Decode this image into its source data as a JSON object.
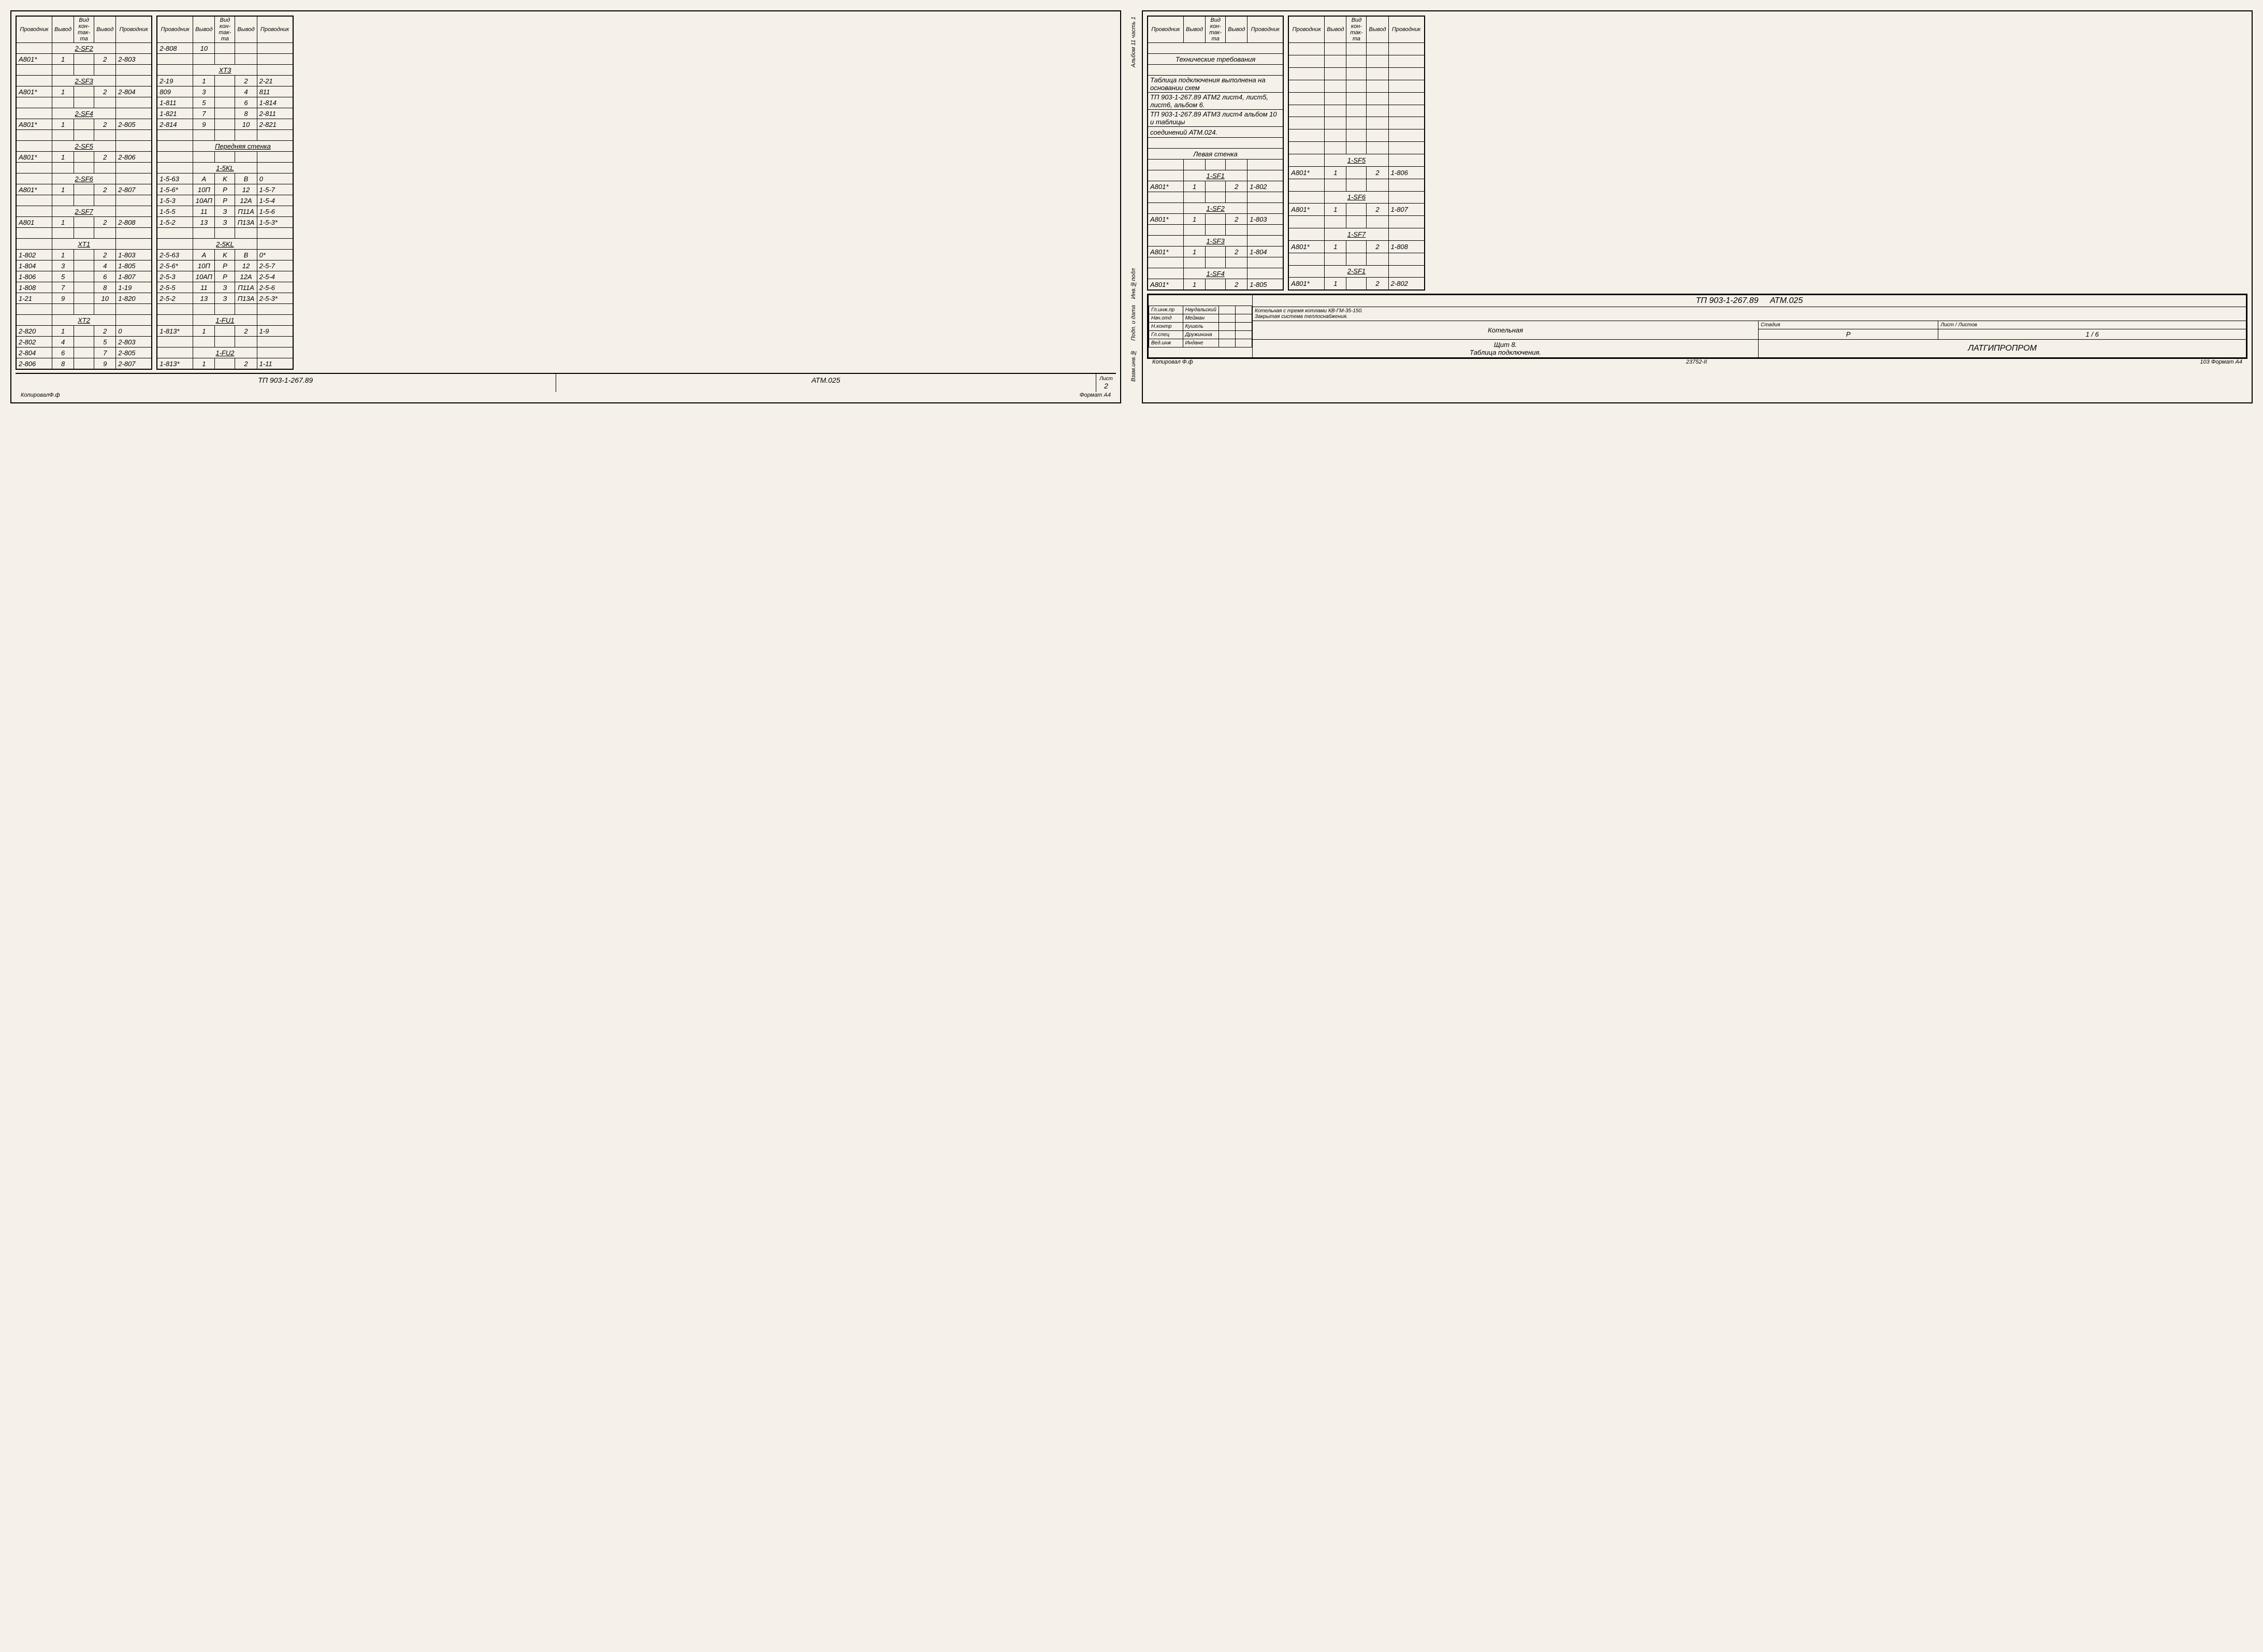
{
  "headers": {
    "t1": "Проводник",
    "t2": "Вывод",
    "t3": "Вид кон-так-та",
    "t4": "Вывод",
    "t5": "Проводник"
  },
  "left": {
    "tableA": {
      "rows": [
        {
          "section": "2-SF2"
        },
        {
          "c1": "A801*",
          "c2": "1",
          "c3": "",
          "c4": "2",
          "c5": "2-803"
        },
        {
          "blank": true
        },
        {
          "section": "2-SF3"
        },
        {
          "c1": "A801*",
          "c2": "1",
          "c3": "",
          "c4": "2",
          "c5": "2-804"
        },
        {
          "blank": true
        },
        {
          "section": "2-SF4"
        },
        {
          "c1": "A801*",
          "c2": "1",
          "c3": "",
          "c4": "2",
          "c5": "2-805"
        },
        {
          "blank": true
        },
        {
          "section": "2-SF5"
        },
        {
          "c1": "A801*",
          "c2": "1",
          "c3": "",
          "c4": "2",
          "c5": "2-806"
        },
        {
          "blank": true
        },
        {
          "section": "2-SF6"
        },
        {
          "c1": "A801*",
          "c2": "1",
          "c3": "",
          "c4": "2",
          "c5": "2-807"
        },
        {
          "blank": true
        },
        {
          "section": "2-SF7"
        },
        {
          "c1": "A801",
          "c2": "1",
          "c3": "",
          "c4": "2",
          "c5": "2-808"
        },
        {
          "blank": true
        },
        {
          "section": "XT1"
        },
        {
          "c1": "1-802",
          "c2": "1",
          "c3": "",
          "c4": "2",
          "c5": "1-803"
        },
        {
          "c1": "1-804",
          "c2": "3",
          "c3": "",
          "c4": "4",
          "c5": "1-805"
        },
        {
          "c1": "1-806",
          "c2": "5",
          "c3": "",
          "c4": "6",
          "c5": "1-807"
        },
        {
          "c1": "1-808",
          "c2": "7",
          "c3": "",
          "c4": "8",
          "c5": "1-19"
        },
        {
          "c1": "1-21",
          "c2": "9",
          "c3": "",
          "c4": "10",
          "c5": "1-820"
        },
        {
          "blank": true
        },
        {
          "section": "XT2"
        },
        {
          "c1": "2-820",
          "c2": "1",
          "c3": "",
          "c4": "2",
          "c5": "0"
        },
        {
          "c1": "2-802",
          "c2": "4",
          "c3": "",
          "c4": "5",
          "c5": "2-803"
        },
        {
          "c1": "2-804",
          "c2": "6",
          "c3": "",
          "c4": "7",
          "c5": "2-805"
        },
        {
          "c1": "2-806",
          "c2": "8",
          "c3": "",
          "c4": "9",
          "c5": "2-807"
        }
      ]
    },
    "tableB": {
      "rows": [
        {
          "c1": "2-808",
          "c2": "10",
          "c3": "",
          "c4": "",
          "c5": ""
        },
        {
          "blank": true
        },
        {
          "section": "XT3"
        },
        {
          "c1": "2-19",
          "c2": "1",
          "c3": "",
          "c4": "2",
          "c5": "2-21"
        },
        {
          "c1": "809",
          "c2": "3",
          "c3": "",
          "c4": "4",
          "c5": "811"
        },
        {
          "c1": "1-811",
          "c2": "5",
          "c3": "",
          "c4": "6",
          "c5": "1-814"
        },
        {
          "c1": "1-821",
          "c2": "7",
          "c3": "",
          "c4": "8",
          "c5": "2-811"
        },
        {
          "c1": "2-814",
          "c2": "9",
          "c3": "",
          "c4": "10",
          "c5": "2-821"
        },
        {
          "blank": true
        },
        {
          "wallhdr": "Передняя стенка"
        },
        {
          "blank": true
        },
        {
          "section": "1-5KL"
        },
        {
          "c1": "1-5-63",
          "c2": "A",
          "c3": "K",
          "c4": "B",
          "c5": "0"
        },
        {
          "c1": "1-5-6*",
          "c2": "10П",
          "c3": "Р",
          "c4": "12",
          "c5": "1-5-7"
        },
        {
          "c1": "1-5-3",
          "c2": "10АП",
          "c3": "Р",
          "c4": "12А",
          "c5": "1-5-4"
        },
        {
          "c1": "1-5-5",
          "c2": "11",
          "c3": "З",
          "c4": "П11А",
          "c5": "1-5-6"
        },
        {
          "c1": "1-5-2",
          "c2": "13",
          "c3": "З",
          "c4": "П13А",
          "c5": "1-5-3*"
        },
        {
          "blank": true
        },
        {
          "section": "2-5KL"
        },
        {
          "c1": "2-5-63",
          "c2": "A",
          "c3": "K",
          "c4": "B",
          "c5": "0*"
        },
        {
          "c1": "2-5-6*",
          "c2": "10П",
          "c3": "Р",
          "c4": "12",
          "c5": "2-5-7"
        },
        {
          "c1": "2-5-3",
          "c2": "10АП",
          "c3": "Р",
          "c4": "12А",
          "c5": "2-5-4"
        },
        {
          "c1": "2-5-5",
          "c2": "11",
          "c3": "З",
          "c4": "П11А",
          "c5": "2-5-6"
        },
        {
          "c1": "2-5-2",
          "c2": "13",
          "c3": "З",
          "c4": "П13А",
          "c5": "2-5-3*"
        },
        {
          "blank": true
        },
        {
          "section": "1-FU1"
        },
        {
          "c1": "1-813*",
          "c2": "1",
          "c3": "",
          "c4": "2",
          "c5": "1-9"
        },
        {
          "blank": true
        },
        {
          "section": "1-FU2"
        },
        {
          "c1": "1-813*",
          "c2": "1",
          "c3": "",
          "c4": "2",
          "c5": "1-11"
        }
      ]
    },
    "footer": {
      "tp": "ТП 903-1-267.89",
      "atm": "АТМ.025",
      "list": "Лист",
      "sheet": "2",
      "copy": "КопировалФ.ф",
      "format": "Формат А4"
    }
  },
  "right": {
    "sideLabel": "Альбом 11 часть 1",
    "notesHdr": "Технические требования",
    "notes": [
      "Таблица подключения выполнена на основании схем",
      "ТП 903-1-267.89 АТМ2 лист4, лист5, лист6, альбом 6.",
      "ТП 903-1-267.89 АТМ3 лист4 альбом 10 и таблицы",
      "соединений    АТМ.024."
    ],
    "wallLeft": "Левая стенка",
    "tableC": {
      "rows": [
        {
          "blank": true
        },
        {
          "section": "1-SF1"
        },
        {
          "c1": "A801*",
          "c2": "1",
          "c3": "",
          "c4": "2",
          "c5": "1-802"
        },
        {
          "blank": true
        },
        {
          "section": "1-SF2"
        },
        {
          "c1": "A801*",
          "c2": "1",
          "c3": "",
          "c4": "2",
          "c5": "1-803"
        },
        {
          "blank": true
        },
        {
          "section": "1-SF3"
        },
        {
          "c1": "A801*",
          "c2": "1",
          "c3": "",
          "c4": "2",
          "c5": "1-804"
        },
        {
          "blank": true
        },
        {
          "section": "1-SF4"
        },
        {
          "c1": "A801*",
          "c2": "1",
          "c3": "",
          "c4": "2",
          "c5": "1-805"
        }
      ]
    },
    "tableD": {
      "rows": [
        {
          "blank": true
        },
        {
          "section": "1-SF5"
        },
        {
          "c1": "A801*",
          "c2": "1",
          "c3": "",
          "c4": "2",
          "c5": "1-806"
        },
        {
          "blank": true
        },
        {
          "section": "1-SF6"
        },
        {
          "c1": "A801*",
          "c2": "1",
          "c3": "",
          "c4": "2",
          "c5": "1-807"
        },
        {
          "blank": true
        },
        {
          "section": "1-SF7"
        },
        {
          "c1": "A801*",
          "c2": "1",
          "c3": "",
          "c4": "2",
          "c5": "1-808"
        },
        {
          "blank": true
        },
        {
          "section": "2-SF1"
        },
        {
          "c1": "A801*",
          "c2": "1",
          "c3": "",
          "c4": "2",
          "c5": "2-802"
        }
      ]
    },
    "titleBlock": {
      "roles": [
        {
          "r": "Гл.инж.пр",
          "n": "Наудальский"
        },
        {
          "r": "Нач.отд",
          "n": "Мейман"
        },
        {
          "r": "Н.контр",
          "n": "Кушель"
        },
        {
          "r": "Гл.спец",
          "n": "Дружинина"
        },
        {
          "r": "Вед.инж",
          "n": "Индане"
        }
      ],
      "tp": "ТП 903-1-267.89",
      "atm": "АТМ.025",
      "desc1": "Котельная с тремя котлами КВ-ГМ-35-150.",
      "desc2": "Закрытая система теплоснабжения.",
      "obj": "Котельная",
      "sub1": "Щит 8.",
      "sub2": "Таблица подключения.",
      "stage_h": "Стадия",
      "list_h": "Лист",
      "listov_h": "Листов",
      "stage": "Р",
      "list": "1",
      "listov": "6",
      "org": "ЛАТГИПРОПРОМ",
      "copy": "Копировал Ф.ф",
      "inv": "23752-II",
      "format": "103 Формат А4"
    },
    "stamp": {
      "l1": "Инв.№подл",
      "l2": "Подп. и дата",
      "l3": "Взам.инв.№"
    }
  }
}
